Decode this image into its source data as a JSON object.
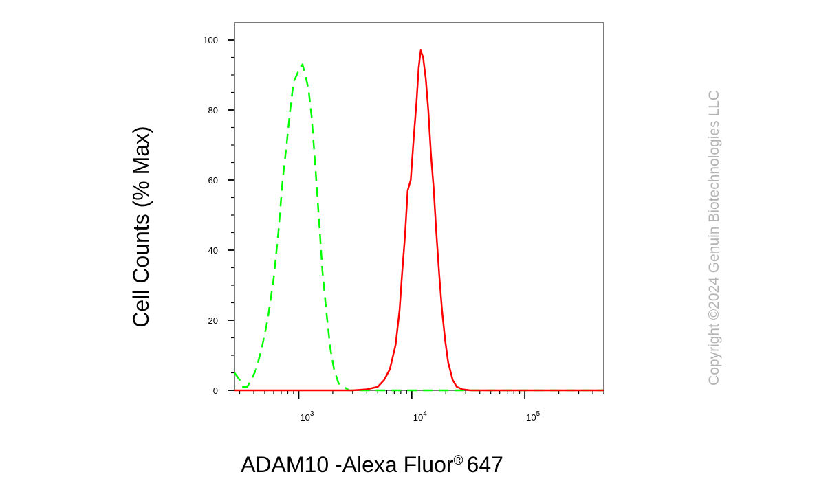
{
  "chart_data": {
    "type": "line",
    "title": "",
    "xlabel": "ADAM10 -Alexa Fluor",
    "xlabel_superscript": "®",
    "xlabel_suffix": "647",
    "ylabel": "Cell Counts (% Max)",
    "xscale": "log",
    "xlim": [
      270,
      500000
    ],
    "ylim": [
      0,
      105
    ],
    "yticks": [
      0,
      20,
      40,
      60,
      80,
      100
    ],
    "xticks": [
      {
        "value": 1000,
        "base": "10",
        "exp": "3"
      },
      {
        "value": 10000,
        "base": "10",
        "exp": "4"
      },
      {
        "value": 100000,
        "base": "10",
        "exp": "5"
      }
    ],
    "grid": false,
    "legend": "none",
    "series": [
      {
        "color": "#00ff00",
        "style": "dashed",
        "x": [
          270,
          300,
          320,
          350,
          380,
          420,
          470,
          530,
          600,
          660,
          720,
          780,
          840,
          900,
          960,
          1020,
          1080,
          1140,
          1220,
          1300,
          1400,
          1500,
          1620,
          1760,
          1900,
          2050,
          2250,
          2500,
          2800,
          3200,
          4000,
          6000,
          10000,
          20000,
          50000,
          100000,
          500000
        ],
        "values": [
          5,
          3,
          1,
          1,
          3,
          6,
          12,
          20,
          32,
          45,
          60,
          70,
          80,
          88,
          90,
          92,
          93,
          90,
          86,
          78,
          64,
          50,
          34,
          22,
          12,
          6,
          2,
          1,
          0,
          0,
          0,
          0,
          0,
          0,
          0,
          0,
          0
        ]
      },
      {
        "color": "#ff0000",
        "style": "solid",
        "x": [
          270,
          1000,
          3000,
          4000,
          5000,
          5700,
          6400,
          7200,
          7800,
          8200,
          8700,
          9200,
          9800,
          10400,
          11000,
          11500,
          12000,
          12600,
          13300,
          14000,
          14800,
          15600,
          16500,
          17500,
          18500,
          19800,
          21000,
          23000,
          25000,
          28000,
          33000,
          40000,
          60000,
          100000,
          500000
        ],
        "values": [
          0,
          0,
          0,
          0.3,
          1,
          3,
          6,
          13,
          23,
          33,
          44,
          57,
          60,
          72,
          82,
          92,
          97,
          95,
          89,
          80,
          67,
          58,
          45,
          33,
          23,
          14,
          8,
          3,
          1,
          0.3,
          0,
          0,
          0,
          0,
          0
        ]
      }
    ]
  },
  "watermark": {
    "text": "Copyright ©2024 Genuin Biotechnologies LLC"
  }
}
